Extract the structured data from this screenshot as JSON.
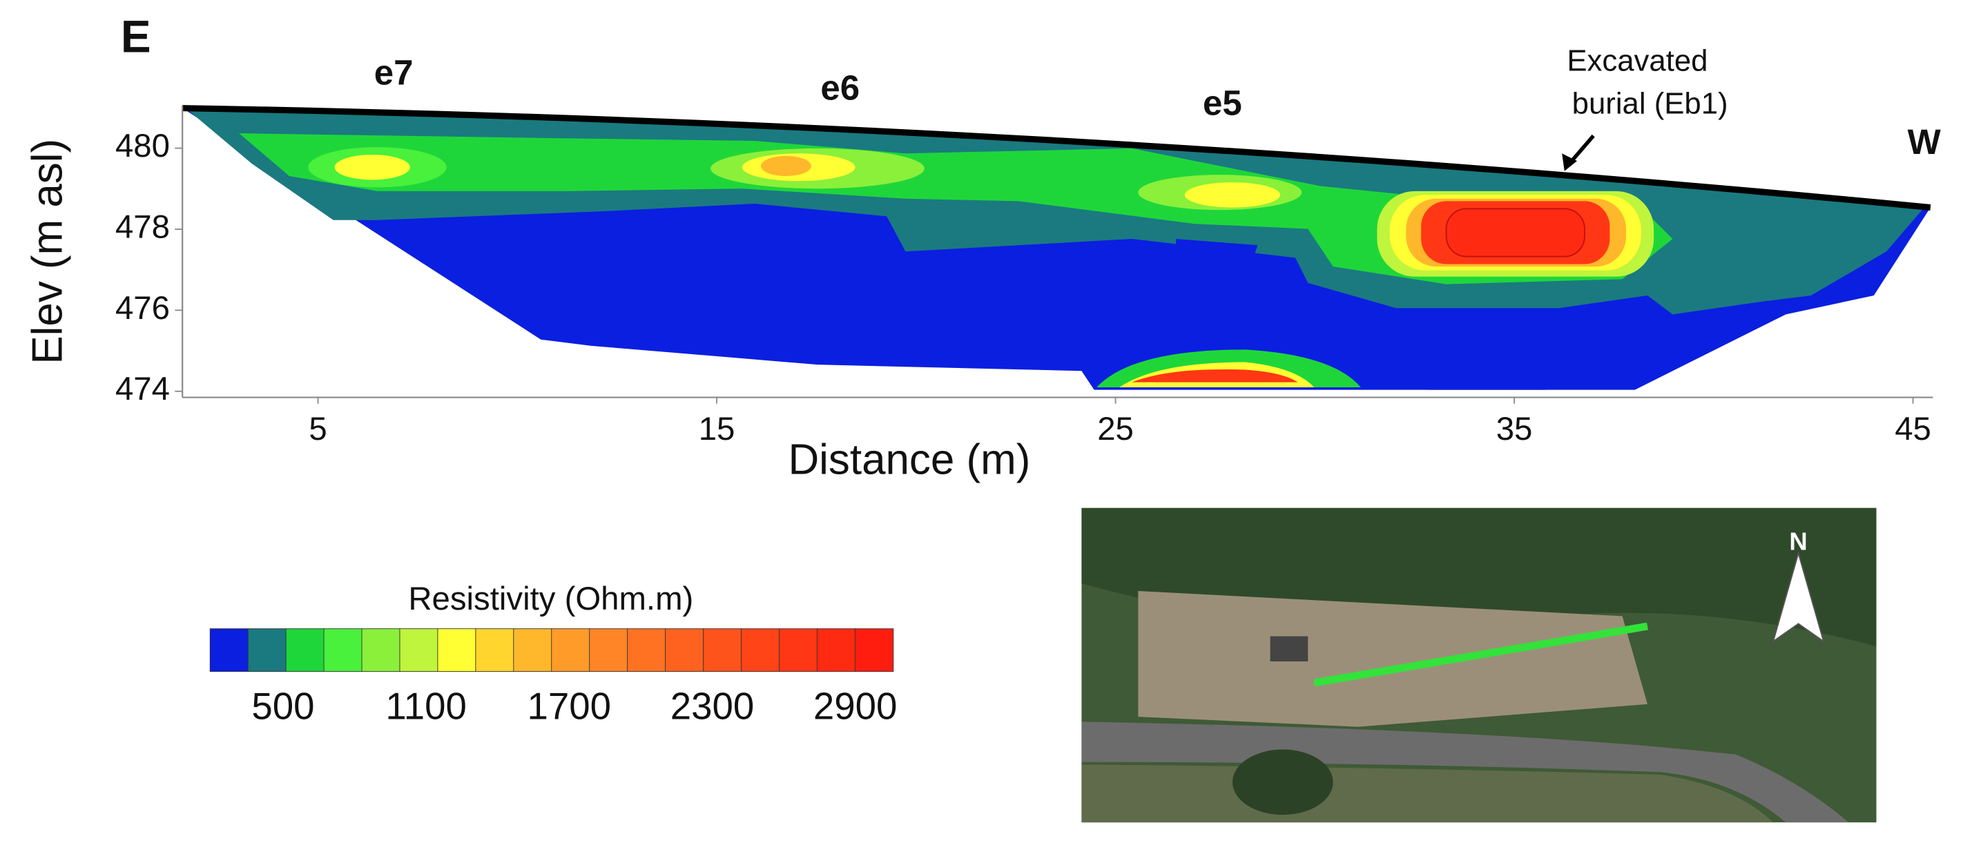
{
  "chart_data": {
    "type": "contour",
    "panel_label": "E",
    "xlabel": "Distance (m)",
    "ylabel": "Elev (m asl)",
    "xlim": [
      1.6,
      45.5
    ],
    "ylim": [
      473.85,
      481.05
    ],
    "xticks": [
      5,
      15,
      25,
      35,
      45
    ],
    "yticks": [
      474,
      476,
      478,
      480
    ],
    "annotations": [
      "e7",
      "e6",
      "e5",
      "Excavated",
      "burial (Eb1)",
      "W"
    ],
    "colorbar": {
      "title": "Resistivity (Ohm.m)",
      "clim": [
        194,
        3058
      ],
      "ticks": [
        500,
        1100,
        1700,
        2300,
        2900
      ],
      "colors": [
        "#0b1fe0",
        "#1a7a80",
        "#1fd63a",
        "#49f03c",
        "#8af03a",
        "#bff53c",
        "#ffff33",
        "#ffd52e",
        "#ffb72b",
        "#ff9b29",
        "#ff8526",
        "#ff7222",
        "#ff621f",
        "#ff531c",
        "#ff4418",
        "#ff3715",
        "#ff2a12",
        "#ff1d10"
      ]
    }
  },
  "inset": {
    "north_label": "N"
  }
}
